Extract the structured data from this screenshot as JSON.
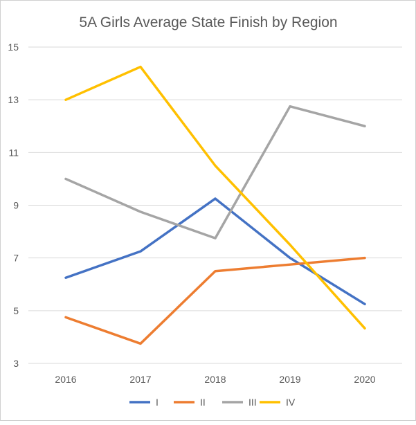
{
  "chart_data": {
    "type": "line",
    "title": "5A Girls Average State Finish by Region",
    "xlabel": "",
    "ylabel": "",
    "categories": [
      "2016",
      "2017",
      "2018",
      "2019",
      "2020"
    ],
    "ylim": [
      3,
      15
    ],
    "yticks": [
      3,
      5,
      7,
      9,
      11,
      13,
      15
    ],
    "grid": true,
    "legend_position": "bottom",
    "series": [
      {
        "name": "I",
        "color": "#4472c4",
        "values": [
          6.25,
          7.25,
          9.25,
          7.0,
          5.25
        ]
      },
      {
        "name": "II",
        "color": "#ed7d31",
        "values": [
          4.75,
          3.75,
          6.5,
          6.75,
          7.0
        ]
      },
      {
        "name": "III",
        "color": "#a5a5a5",
        "values": [
          10.0,
          8.75,
          7.75,
          12.75,
          12.0
        ]
      },
      {
        "name": "IV",
        "color": "#ffc000",
        "values": [
          13.0,
          14.25,
          10.5,
          7.5,
          4.33
        ]
      }
    ]
  }
}
